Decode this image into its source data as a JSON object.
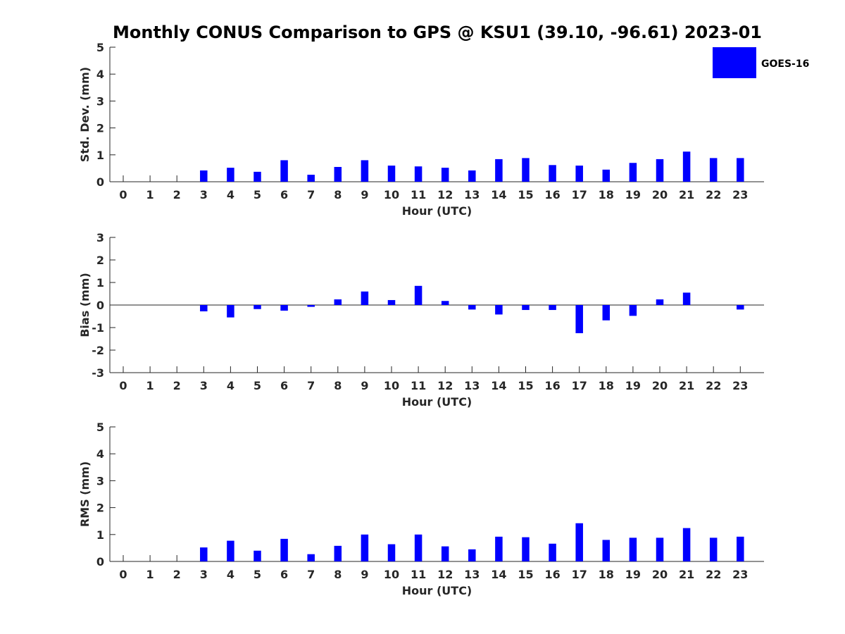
{
  "title": "Monthly CONUS Comparison to GPS @ KSU1 (39.10, -96.61) 2023-01",
  "legend": {
    "label": "GOES-16",
    "color": "#0000ff",
    "placement": "top-right"
  },
  "chart_data": [
    {
      "type": "bar",
      "xlabel": "Hour (UTC)",
      "ylabel": "Std. Dev. (mm)",
      "ylim": [
        0,
        5
      ],
      "yticks": [
        0,
        1,
        2,
        3,
        4,
        5
      ],
      "categories": [
        "0",
        "1",
        "2",
        "3",
        "4",
        "5",
        "6",
        "7",
        "8",
        "9",
        "10",
        "11",
        "12",
        "13",
        "14",
        "15",
        "16",
        "17",
        "18",
        "19",
        "20",
        "21",
        "22",
        "23"
      ],
      "series": [
        {
          "name": "GOES-16",
          "values": [
            null,
            null,
            null,
            0.42,
            0.52,
            0.37,
            0.8,
            0.26,
            0.55,
            0.8,
            0.6,
            0.57,
            0.52,
            0.42,
            0.84,
            0.88,
            0.62,
            0.6,
            0.45,
            0.7,
            0.84,
            1.12,
            0.88,
            0.88
          ]
        }
      ]
    },
    {
      "type": "bar",
      "xlabel": "Hour (UTC)",
      "ylabel": "Bias (mm)",
      "ylim": [
        -3,
        3
      ],
      "yticks": [
        -3,
        -2,
        -1,
        0,
        1,
        2,
        3
      ],
      "categories": [
        "0",
        "1",
        "2",
        "3",
        "4",
        "5",
        "6",
        "7",
        "8",
        "9",
        "10",
        "11",
        "12",
        "13",
        "14",
        "15",
        "16",
        "17",
        "18",
        "19",
        "20",
        "21",
        "22",
        "23"
      ],
      "series": [
        {
          "name": "GOES-16",
          "values": [
            null,
            null,
            null,
            -0.28,
            -0.55,
            -0.18,
            -0.25,
            -0.08,
            0.25,
            0.6,
            0.22,
            0.85,
            0.18,
            -0.2,
            -0.42,
            -0.22,
            -0.22,
            -1.25,
            -0.68,
            -0.48,
            0.25,
            0.55,
            null,
            -0.2
          ]
        }
      ]
    },
    {
      "type": "bar",
      "xlabel": "Hour (UTC)",
      "ylabel": "RMS (mm)",
      "ylim": [
        0,
        5
      ],
      "yticks": [
        0,
        1,
        2,
        3,
        4,
        5
      ],
      "categories": [
        "0",
        "1",
        "2",
        "3",
        "4",
        "5",
        "6",
        "7",
        "8",
        "9",
        "10",
        "11",
        "12",
        "13",
        "14",
        "15",
        "16",
        "17",
        "18",
        "19",
        "20",
        "21",
        "22",
        "23"
      ],
      "series": [
        {
          "name": "GOES-16",
          "values": [
            null,
            null,
            null,
            0.52,
            0.77,
            0.4,
            0.84,
            0.27,
            0.58,
            1.0,
            0.64,
            1.0,
            0.56,
            0.45,
            0.92,
            0.9,
            0.66,
            1.42,
            0.8,
            0.88,
            0.88,
            1.24,
            0.88,
            0.92
          ]
        }
      ]
    }
  ]
}
